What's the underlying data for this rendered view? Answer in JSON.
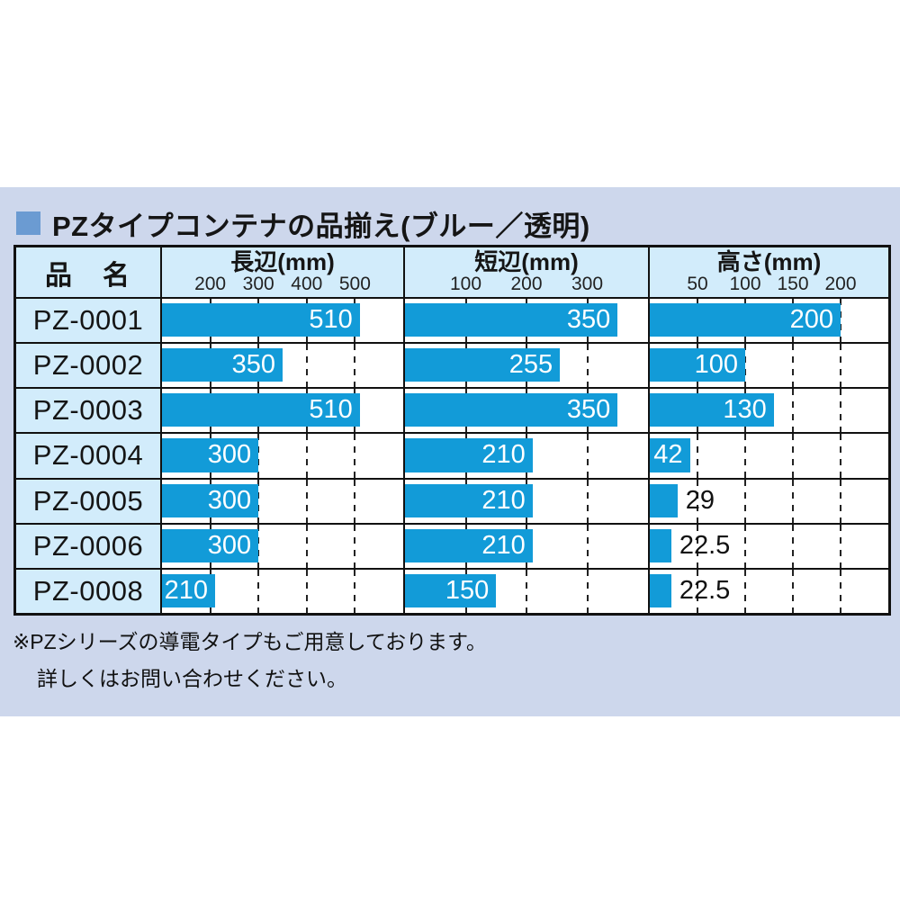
{
  "colors": {
    "band_bg": "#cdd7ec",
    "title_bullet": "#6b9bd2",
    "header_bg": "#d2ecfb",
    "name_cell_bg": "#d2ecfb",
    "bar": "#129bd8",
    "border": "#111111",
    "bar_label_in": "#ffffff",
    "bar_label_out": "#111111"
  },
  "title": {
    "text": "PZタイプコンテナの品揃え(ブルー／透明)"
  },
  "table": {
    "name_header": "品　名",
    "columns": [
      {
        "key": "long",
        "label": "長辺(mm)",
        "axis_min": 100,
        "axis_max": 600,
        "ticks": [
          200,
          300,
          400,
          500
        ]
      },
      {
        "key": "short",
        "label": "短辺(mm)",
        "axis_min": 0,
        "axis_max": 400,
        "ticks": [
          100,
          200,
          300
        ]
      },
      {
        "key": "height",
        "label": "高さ(mm)",
        "axis_min": 0,
        "axis_max": 250,
        "ticks": [
          50,
          100,
          150,
          200
        ]
      }
    ],
    "rows": [
      {
        "name": "PZ-0001",
        "values": [
          510,
          350,
          200
        ]
      },
      {
        "name": "PZ-0002",
        "values": [
          350,
          255,
          100
        ]
      },
      {
        "name": "PZ-0003",
        "values": [
          510,
          350,
          130
        ]
      },
      {
        "name": "PZ-0004",
        "values": [
          300,
          210,
          42
        ]
      },
      {
        "name": "PZ-0005",
        "values": [
          300,
          210,
          29
        ]
      },
      {
        "name": "PZ-0006",
        "values": [
          300,
          210,
          22.5
        ]
      },
      {
        "name": "PZ-0008",
        "values": [
          210,
          150,
          22.5
        ]
      }
    ]
  },
  "note": {
    "line1": "※PZシリーズの導電タイプもご用意しております。",
    "line2": "詳しくはお問い合わせください。"
  },
  "chart_data": {
    "type": "bar",
    "orientation": "horizontal",
    "title": "PZタイプコンテナの品揃え(ブルー／透明)",
    "categories": [
      "PZ-0001",
      "PZ-0002",
      "PZ-0003",
      "PZ-0004",
      "PZ-0005",
      "PZ-0006",
      "PZ-0008"
    ],
    "series": [
      {
        "name": "長辺(mm)",
        "values": [
          510,
          350,
          510,
          300,
          300,
          300,
          210
        ],
        "axis_range": [
          100,
          600
        ],
        "ticks": [
          200,
          300,
          400,
          500
        ]
      },
      {
        "name": "短辺(mm)",
        "values": [
          350,
          255,
          350,
          210,
          210,
          210,
          150
        ],
        "axis_range": [
          0,
          400
        ],
        "ticks": [
          100,
          200,
          300
        ]
      },
      {
        "name": "高さ(mm)",
        "values": [
          200,
          100,
          130,
          42,
          29,
          22.5,
          22.5
        ],
        "axis_range": [
          0,
          250
        ],
        "ticks": [
          50,
          100,
          150,
          200
        ]
      }
    ],
    "grid": "dashed-vertical",
    "legend_position": "none",
    "bar_color": "#129bd8"
  }
}
